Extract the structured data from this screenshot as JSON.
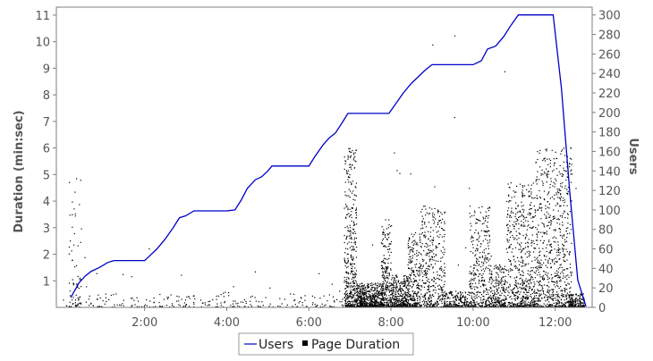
{
  "chart_data": {
    "type": "scatter",
    "title": "",
    "xlabel": "",
    "ylabel_left": "Duration (min:sec)",
    "ylabel_right": "Users",
    "x_unit": "minutes",
    "x_range": [
      -0.15,
      12.9
    ],
    "x_ticks": [
      {
        "value": 2,
        "label": "2:00"
      },
      {
        "value": 4,
        "label": "4:00"
      },
      {
        "value": 6,
        "label": "6:00"
      },
      {
        "value": 8,
        "label": "8:00"
      },
      {
        "value": 10,
        "label": "10:00"
      },
      {
        "value": 12,
        "label": "12:00"
      }
    ],
    "y_left_range": [
      0,
      11.3
    ],
    "y_left_ticks": [
      {
        "value": 1,
        "label": "1"
      },
      {
        "value": 2,
        "label": "2"
      },
      {
        "value": 3,
        "label": "3"
      },
      {
        "value": 4,
        "label": "4"
      },
      {
        "value": 5,
        "label": "5"
      },
      {
        "value": 6,
        "label": "6"
      },
      {
        "value": 7,
        "label": "7"
      },
      {
        "value": 8,
        "label": "8"
      },
      {
        "value": 9,
        "label": "9"
      },
      {
        "value": 10,
        "label": "10"
      },
      {
        "value": 11,
        "label": "11"
      }
    ],
    "y_right_range": [
      0,
      308
    ],
    "y_right_ticks": [
      {
        "value": 0,
        "label": "0"
      },
      {
        "value": 20,
        "label": "20"
      },
      {
        "value": 40,
        "label": "40"
      },
      {
        "value": 60,
        "label": "60"
      },
      {
        "value": 80,
        "label": "80"
      },
      {
        "value": 100,
        "label": "100"
      },
      {
        "value": 120,
        "label": "120"
      },
      {
        "value": 140,
        "label": "140"
      },
      {
        "value": 160,
        "label": "160"
      },
      {
        "value": 180,
        "label": "180"
      },
      {
        "value": 200,
        "label": "200"
      },
      {
        "value": 220,
        "label": "220"
      },
      {
        "value": 240,
        "label": "240"
      },
      {
        "value": 260,
        "label": "260"
      },
      {
        "value": 280,
        "label": "280"
      },
      {
        "value": 300,
        "label": "300"
      }
    ],
    "grid": false,
    "legend_position": "bottom-center",
    "series": [
      {
        "name": "Users",
        "kind": "line",
        "axis": "right",
        "color": "#0000c8",
        "points": [
          [
            0.2,
            10
          ],
          [
            0.4,
            25
          ],
          [
            0.55,
            32
          ],
          [
            0.7,
            37
          ],
          [
            0.9,
            41
          ],
          [
            1.1,
            46
          ],
          [
            1.25,
            48
          ],
          [
            1.5,
            48
          ],
          [
            2.0,
            48
          ],
          [
            2.1,
            52
          ],
          [
            2.3,
            60
          ],
          [
            2.5,
            70
          ],
          [
            2.7,
            82
          ],
          [
            2.85,
            92
          ],
          [
            3.0,
            94
          ],
          [
            3.2,
            99
          ],
          [
            3.5,
            99
          ],
          [
            4.0,
            99
          ],
          [
            4.2,
            100
          ],
          [
            4.35,
            110
          ],
          [
            4.5,
            122
          ],
          [
            4.7,
            131
          ],
          [
            4.85,
            134
          ],
          [
            5.0,
            140
          ],
          [
            5.1,
            145
          ],
          [
            5.5,
            145
          ],
          [
            6.0,
            145
          ],
          [
            6.15,
            155
          ],
          [
            6.35,
            167
          ],
          [
            6.5,
            174
          ],
          [
            6.65,
            179
          ],
          [
            6.85,
            192
          ],
          [
            6.95,
            199
          ],
          [
            7.1,
            199
          ],
          [
            7.5,
            199
          ],
          [
            7.95,
            199
          ],
          [
            8.1,
            208
          ],
          [
            8.3,
            220
          ],
          [
            8.5,
            230
          ],
          [
            8.7,
            238
          ],
          [
            8.85,
            244
          ],
          [
            9.0,
            249
          ],
          [
            9.5,
            249
          ],
          [
            10.0,
            249
          ],
          [
            10.2,
            253
          ],
          [
            10.35,
            265
          ],
          [
            10.55,
            268
          ],
          [
            10.75,
            278
          ],
          [
            10.9,
            288
          ],
          [
            11.1,
            300
          ],
          [
            11.5,
            300
          ],
          [
            11.95,
            300
          ],
          [
            12.15,
            225
          ],
          [
            12.35,
            120
          ],
          [
            12.55,
            28
          ],
          [
            12.75,
            1
          ]
        ]
      },
      {
        "name": "Page Duration",
        "kind": "scatter",
        "axis": "left",
        "color": "#000000",
        "marker": "square",
        "clusters": [
          {
            "x": [
              0.0,
              7.0
            ],
            "y": [
              0.0,
              0.5
            ],
            "density": 220
          },
          {
            "x": [
              0.0,
              7.0
            ],
            "y": [
              0.0,
              1.3
            ],
            "density": 35
          },
          {
            "x": [
              0.0,
              7.0
            ],
            "y": [
              0.0,
              2.8
            ],
            "density": 8
          },
          {
            "x": [
              0.15,
              0.45
            ],
            "y": [
              0.0,
              5.3
            ],
            "density": 60
          },
          {
            "x": [
              6.85,
              7.15
            ],
            "y": [
              0.0,
              6.0
            ],
            "density": 400
          },
          {
            "x": [
              7.15,
              7.8
            ],
            "y": [
              0.0,
              0.9
            ],
            "density": 600
          },
          {
            "x": [
              7.75,
              8.0
            ],
            "y": [
              0.0,
              3.3
            ],
            "density": 260
          },
          {
            "x": [
              8.0,
              8.4
            ],
            "y": [
              0.0,
              1.2
            ],
            "density": 350
          },
          {
            "x": [
              8.4,
              8.7
            ],
            "y": [
              0.0,
              2.8
            ],
            "density": 260
          },
          {
            "x": [
              8.7,
              9.3
            ],
            "y": [
              0.0,
              3.8
            ],
            "density": 400
          },
          {
            "x": [
              9.3,
              9.9
            ],
            "y": [
              0.0,
              0.6
            ],
            "density": 220
          },
          {
            "x": [
              9.9,
              10.4
            ],
            "y": [
              0.0,
              3.8
            ],
            "density": 340
          },
          {
            "x": [
              10.4,
              10.8
            ],
            "y": [
              0.0,
              1.6
            ],
            "density": 250
          },
          {
            "x": [
              10.8,
              11.5
            ],
            "y": [
              0.0,
              4.7
            ],
            "density": 600
          },
          {
            "x": [
              11.5,
              12.4
            ],
            "y": [
              0.0,
              6.0
            ],
            "density": 750
          },
          {
            "x": [
              12.3,
              12.7
            ],
            "y": [
              0.0,
              0.5
            ],
            "density": 180
          },
          {
            "x": [
              7.0,
              12.5
            ],
            "y": [
              0.0,
              11.0
            ],
            "density": 25
          }
        ]
      }
    ]
  },
  "legend": {
    "users_label": "Users",
    "duration_label": "Page Duration"
  }
}
